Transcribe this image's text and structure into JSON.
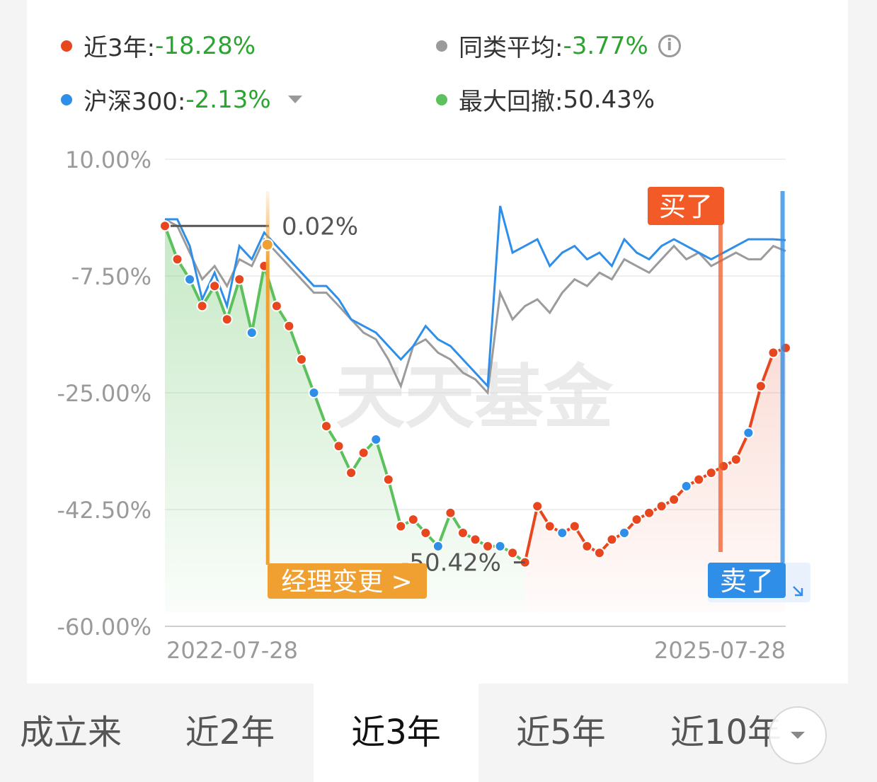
{
  "legend": [
    {
      "label": "近3年:",
      "value": "-18.28%",
      "color": "#e8461e"
    },
    {
      "label": "同类平均:",
      "value": "-3.77%",
      "color": "#9b9b9b"
    },
    {
      "label": "沪深300:",
      "value": "-2.13%",
      "color": "#2f8fe8"
    },
    {
      "label": "最大回撤:",
      "value": "50.43%",
      "color": "#5cc05c"
    }
  ],
  "icons": {
    "info": "info-icon",
    "dropdown": "caret-down-icon"
  },
  "watermark": "天天基金",
  "chart_data": {
    "type": "line",
    "y_ticks": [
      "10.00%",
      "-7.50%",
      "-25.00%",
      "-42.50%",
      "-60.00%"
    ],
    "ylim": [
      -60,
      10
    ],
    "x_labels": [
      "2022-07-28",
      "2025-07-28"
    ],
    "series": [
      {
        "name": "近3年",
        "color": "#e8461e",
        "x": [
          0,
          0.02,
          0.04,
          0.06,
          0.08,
          0.1,
          0.12,
          0.14,
          0.16,
          0.18,
          0.2,
          0.22,
          0.24,
          0.26,
          0.28,
          0.3,
          0.32,
          0.34,
          0.36,
          0.38,
          0.4,
          0.42,
          0.44,
          0.46,
          0.48,
          0.5,
          0.52,
          0.54,
          0.56,
          0.58,
          0.6,
          0.62,
          0.64,
          0.66,
          0.68,
          0.7,
          0.72,
          0.74,
          0.76,
          0.78,
          0.8,
          0.82,
          0.84,
          0.86,
          0.88,
          0.9,
          0.92,
          0.94,
          0.96,
          0.98,
          1.0
        ],
        "y": [
          0,
          -5,
          -8,
          -12,
          -9,
          -14,
          -8,
          -16,
          -6,
          -12,
          -15,
          -20,
          -25,
          -30,
          -33,
          -37,
          -34,
          -32,
          -38,
          -45,
          -44,
          -46,
          -48,
          -43,
          -46,
          -47,
          -48,
          -48,
          -49,
          -50.42,
          -42,
          -45,
          -46,
          -45,
          -48,
          -49,
          -47,
          -46,
          -44,
          -43,
          -42,
          -41,
          -39,
          -38,
          -37,
          -36,
          -35,
          -31,
          -24,
          -19,
          -18.28
        ]
      },
      {
        "name": "同类平均",
        "color": "#9b9b9b",
        "x": [
          0,
          0.02,
          0.04,
          0.06,
          0.08,
          0.1,
          0.12,
          0.14,
          0.16,
          0.18,
          0.2,
          0.22,
          0.24,
          0.26,
          0.28,
          0.3,
          0.32,
          0.34,
          0.36,
          0.38,
          0.4,
          0.42,
          0.44,
          0.46,
          0.48,
          0.5,
          0.52,
          0.54,
          0.56,
          0.58,
          0.6,
          0.62,
          0.64,
          0.66,
          0.68,
          0.7,
          0.72,
          0.74,
          0.76,
          0.78,
          0.8,
          0.82,
          0.84,
          0.86,
          0.88,
          0.9,
          0.92,
          0.94,
          0.96,
          0.98,
          1.0
        ],
        "y": [
          1,
          0,
          -4,
          -8,
          -6,
          -9,
          -5,
          -6,
          -2,
          -4,
          -6,
          -8,
          -10,
          -10,
          -12,
          -14,
          -16,
          -17,
          -20,
          -24,
          -18,
          -17,
          -19,
          -20,
          -22,
          -23,
          -25,
          -10,
          -14,
          -12,
          -11,
          -13,
          -10,
          -8,
          -9,
          -7,
          -8,
          -5,
          -6,
          -7,
          -5,
          -3,
          -5,
          -4,
          -6,
          -5,
          -4,
          -5,
          -5,
          -3,
          -3.77
        ]
      },
      {
        "name": "沪深300",
        "color": "#2f8fe8",
        "x": [
          0,
          0.02,
          0.04,
          0.06,
          0.08,
          0.1,
          0.12,
          0.14,
          0.16,
          0.18,
          0.2,
          0.22,
          0.24,
          0.26,
          0.28,
          0.3,
          0.32,
          0.34,
          0.36,
          0.38,
          0.4,
          0.42,
          0.44,
          0.46,
          0.48,
          0.5,
          0.52,
          0.54,
          0.56,
          0.58,
          0.6,
          0.62,
          0.64,
          0.66,
          0.68,
          0.7,
          0.72,
          0.74,
          0.76,
          0.78,
          0.8,
          0.82,
          0.84,
          0.86,
          0.88,
          0.9,
          0.92,
          0.94,
          0.96,
          0.98,
          1.0
        ],
        "y": [
          1,
          1,
          -3,
          -11,
          -7,
          -12,
          -3,
          -5,
          -1,
          -3,
          -5,
          -7,
          -9,
          -9,
          -11,
          -14,
          -15,
          -16,
          -18,
          -20,
          -18,
          -15,
          -17,
          -18,
          -20,
          -22,
          -24,
          3,
          -4,
          -3,
          -2,
          -6,
          -4,
          -3,
          -5,
          -4,
          -6,
          -2,
          -4,
          -5,
          -3,
          -2,
          -3,
          -4,
          -5,
          -4,
          -3,
          -2,
          -2,
          -2,
          -2.13
        ]
      }
    ],
    "drawdown_fill_color": "#5cc05c",
    "peak_label": "0.02%",
    "trough_label": "-50.42%",
    "markers": {
      "manager_change": {
        "label": "经理变更 >",
        "x": 0.165,
        "color": "#f0a030"
      },
      "buy": {
        "label": "买了",
        "x": 0.895,
        "color": "#f25a28"
      },
      "sell": {
        "label": "卖了",
        "x": 0.995,
        "color": "#2f8fe8"
      }
    }
  },
  "tabs": [
    {
      "label": "成立来",
      "active": false
    },
    {
      "label": "近2年",
      "active": false
    },
    {
      "label": "近3年",
      "active": true
    },
    {
      "label": "近5年",
      "active": false
    },
    {
      "label": "近10年",
      "active": false
    }
  ]
}
